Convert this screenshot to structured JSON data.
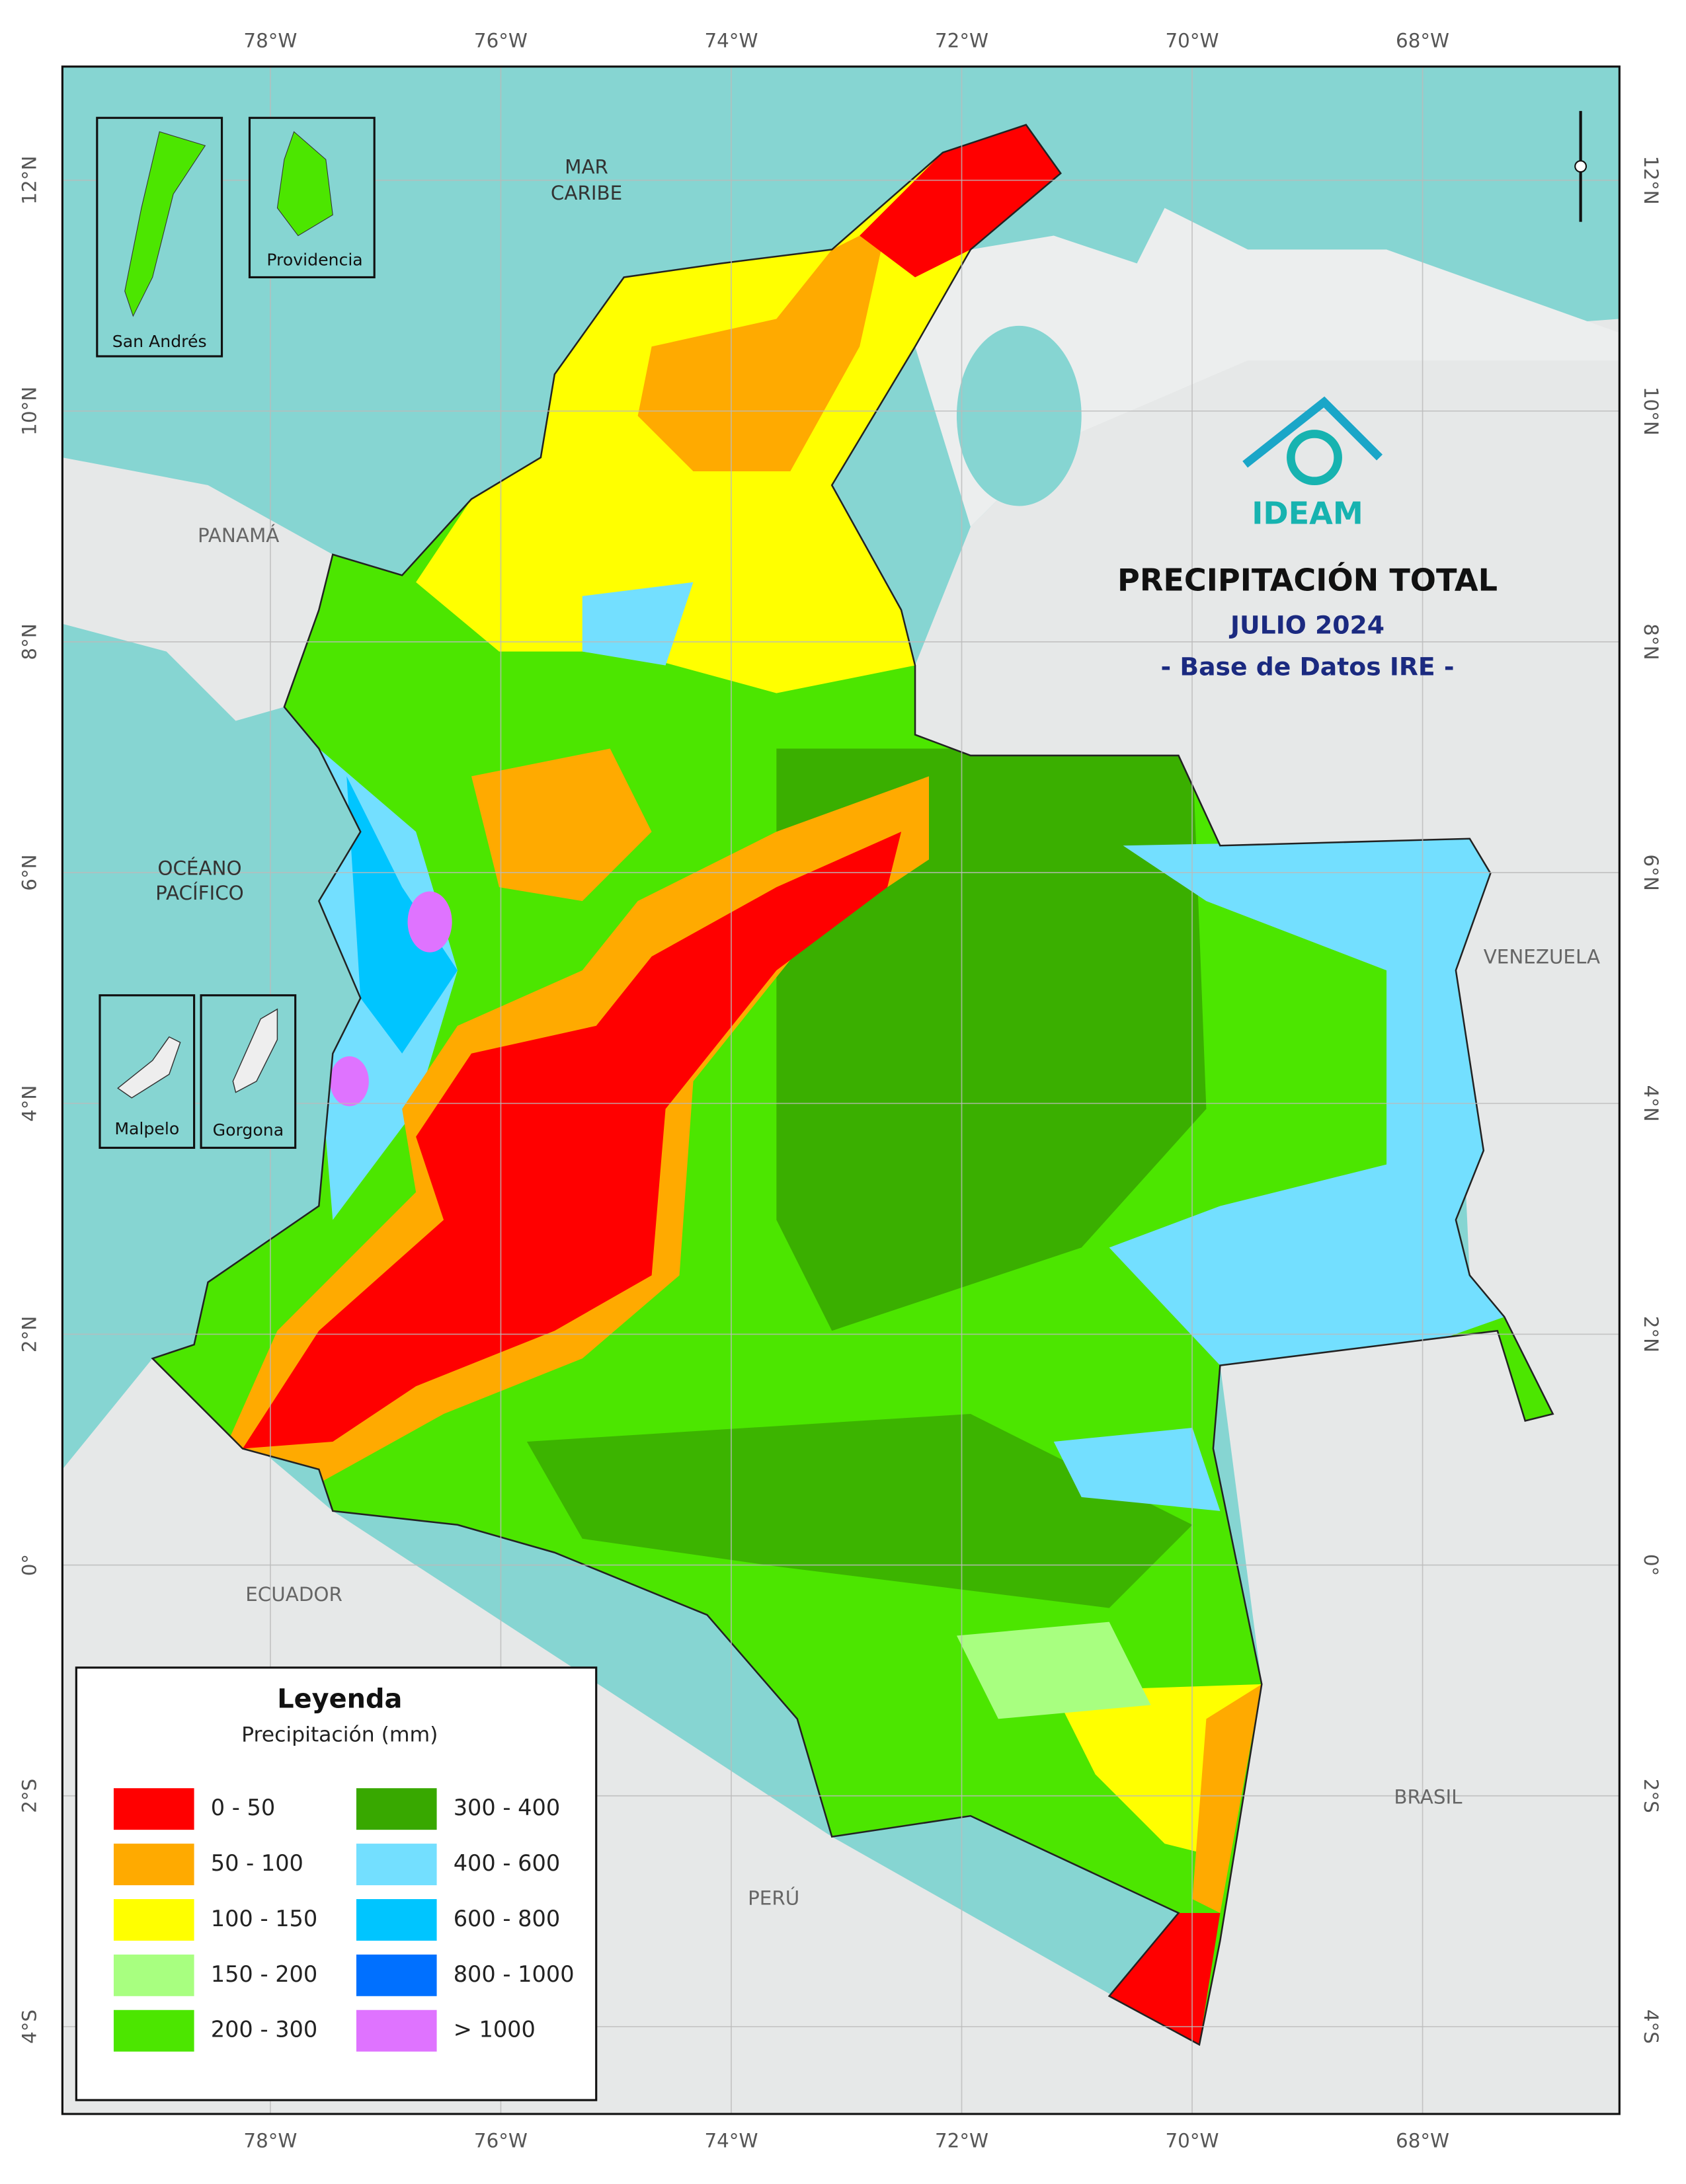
{
  "header": {
    "logo": "IDEAM",
    "title": "PRECIPITACIÓN TOTAL",
    "period": "JULIO 2024",
    "source": "- Base de Datos IRE -"
  },
  "graticule": {
    "longitudes": [
      "78°W",
      "76°W",
      "74°W",
      "72°W",
      "70°W",
      "68°W"
    ],
    "latitudes": [
      "12°N",
      "10°N",
      "8°N",
      "6°N",
      "4°N",
      "2°N",
      "0°",
      "2°S",
      "4°S"
    ]
  },
  "places": {
    "sea": [
      "MAR",
      "CARIBE"
    ],
    "ocean": [
      "OCÉANO",
      "PACÍFICO"
    ],
    "panama": "PANAMÁ",
    "venezuela": "VENEZUELA",
    "ecuador": "ECUADOR",
    "brasil": "BRASIL",
    "peru": "PERÚ"
  },
  "insets": [
    "San Andrés",
    "Providencia",
    "Malpelo",
    "Gorgona"
  ],
  "legend": {
    "title": "Leyenda",
    "subtitle": "Precipitación (mm)",
    "items": [
      {
        "label": "0 - 50",
        "color": "#ff0000"
      },
      {
        "label": "50 - 100",
        "color": "#ffaa00"
      },
      {
        "label": "100 - 150",
        "color": "#ffff00"
      },
      {
        "label": "150 - 200",
        "color": "#a8ff80"
      },
      {
        "label": "200 - 300",
        "color": "#4ce600"
      },
      {
        "label": "300 - 400",
        "color": "#38a800"
      },
      {
        "label": "400 - 600",
        "color": "#73dfff"
      },
      {
        "label": "600 - 800",
        "color": "#00c5ff"
      },
      {
        "label": "800 - 1000",
        "color": "#0070ff"
      },
      {
        "label": "> 1000",
        "color": "#df73ff"
      }
    ]
  }
}
